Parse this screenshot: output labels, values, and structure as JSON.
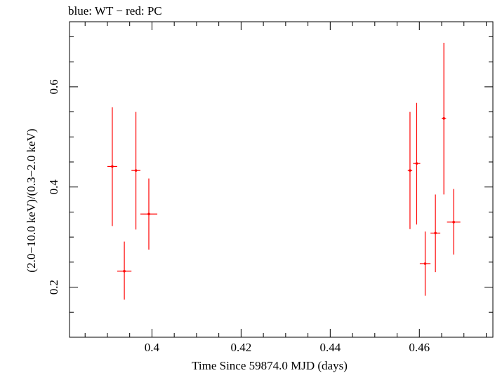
{
  "chart_data": {
    "type": "scatter",
    "title": "blue: WT − red: PC",
    "xlabel": "Time Since 59874.0 MJD (days)",
    "ylabel": "(2.0−10.0 keV)/(0.3−2.0 keV)",
    "xlim": [
      0.3815,
      0.4765
    ],
    "ylim": [
      0.1,
      0.73
    ],
    "xticks": [
      0.4,
      0.42,
      0.44,
      0.46
    ],
    "xtick_labels": [
      "0.4",
      "0.42",
      "0.44",
      "0.46"
    ],
    "yticks": [
      0.2,
      0.4,
      0.6
    ],
    "ytick_labels": [
      "0.2",
      "0.4",
      "0.6"
    ],
    "x_minor_step": 0.005,
    "y_minor_step": 0.05,
    "grid": false,
    "series": [
      {
        "color": "#ff0000",
        "points": [
          {
            "x": 0.3911,
            "xerr": 0.0011,
            "y": 0.441,
            "ylo": 0.322,
            "yhi": 0.559
          },
          {
            "x": 0.3938,
            "xerr": 0.0016,
            "y": 0.232,
            "ylo": 0.175,
            "yhi": 0.291
          },
          {
            "x": 0.3964,
            "xerr": 0.001,
            "y": 0.433,
            "ylo": 0.315,
            "yhi": 0.55
          },
          {
            "x": 0.3993,
            "xerr": 0.0019,
            "y": 0.346,
            "ylo": 0.275,
            "yhi": 0.417
          },
          {
            "x": 0.4579,
            "xerr": 0.0005,
            "y": 0.433,
            "ylo": 0.316,
            "yhi": 0.55
          },
          {
            "x": 0.4594,
            "xerr": 0.0008,
            "y": 0.447,
            "ylo": 0.325,
            "yhi": 0.568
          },
          {
            "x": 0.4613,
            "xerr": 0.0012,
            "y": 0.247,
            "ylo": 0.183,
            "yhi": 0.311
          },
          {
            "x": 0.4636,
            "xerr": 0.0011,
            "y": 0.308,
            "ylo": 0.23,
            "yhi": 0.385
          },
          {
            "x": 0.4655,
            "xerr": 0.0005,
            "y": 0.537,
            "ylo": 0.385,
            "yhi": 0.688
          },
          {
            "x": 0.4677,
            "xerr": 0.0015,
            "y": 0.33,
            "ylo": 0.265,
            "yhi": 0.396
          }
        ]
      }
    ]
  }
}
